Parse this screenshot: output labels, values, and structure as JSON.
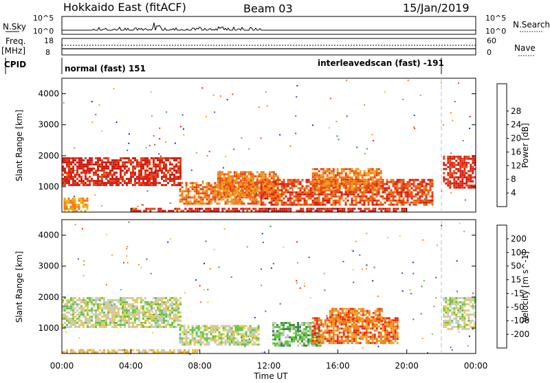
{
  "header": {
    "station": "Hokkaido East (fitACF)",
    "beam": "Beam 03",
    "date": "15/Jan/2019"
  },
  "top_labels": {
    "nsky": "N.Sky",
    "freq": "Freq.",
    "mhz": "[MHz]",
    "cpid": "CPID",
    "nsearch": "N.Search",
    "nave": "Nave",
    "nsky_ticks": [
      "10^5",
      "10^0"
    ],
    "freq_ticks": [
      "18",
      "8"
    ],
    "nsearch_ticks": [
      "10^5",
      "10^0"
    ],
    "nave_ticks": [
      "60",
      "0"
    ]
  },
  "cpid_labels": {
    "left": "normal (fast) 151",
    "right": "interleavedscan (fast) -191"
  },
  "x_axis": {
    "label": "Time UT",
    "ticks": [
      "00:00",
      "04:00",
      "08:00",
      "12:00",
      "16:00",
      "20:00",
      "00:00"
    ]
  },
  "chart_data": [
    {
      "type": "heatmap",
      "panel": "power",
      "xlabel": "Time UT",
      "ylabel": "Slant Range [km]",
      "xlim_hours": [
        0,
        24
      ],
      "ylim_km": [
        180,
        4500
      ],
      "yticks": [
        1000,
        2000,
        3000,
        4000
      ],
      "colorbar": {
        "label": "Power [dB]",
        "ticks": [
          4,
          8,
          12,
          16,
          20,
          24,
          28
        ],
        "colors": [
          "#1428e6",
          "#2a5ab4",
          "#3c8c78",
          "#6ec24a",
          "#e8c81e",
          "#f0a01e",
          "#f07814",
          "#e84614",
          "#d21e14"
        ]
      },
      "regions": [
        {
          "t": [
            0.0,
            6.9
          ],
          "r": [
            1050,
            1950
          ],
          "level": 8
        },
        {
          "t": [
            0.1,
            1.5
          ],
          "r": [
            250,
            650
          ],
          "level": 5
        },
        {
          "t": [
            6.8,
            11.4
          ],
          "r": [
            450,
            1150
          ],
          "level": 6
        },
        {
          "t": [
            9.0,
            12.5
          ],
          "r": [
            700,
            1500
          ],
          "level": 6
        },
        {
          "t": [
            11.5,
            21.5
          ],
          "r": [
            450,
            1250
          ],
          "level": 7
        },
        {
          "t": [
            14.5,
            18.5
          ],
          "r": [
            900,
            1600
          ],
          "level": 6
        },
        {
          "t": [
            4.0,
            20.0
          ],
          "r": [
            190,
            320
          ],
          "level": 8
        },
        {
          "t": [
            22.1,
            24.0
          ],
          "r": [
            1000,
            2000
          ],
          "level": 8
        }
      ]
    },
    {
      "type": "heatmap",
      "panel": "velocity",
      "xlabel": "Time UT",
      "ylabel": "Slant Range [km]",
      "xlim_hours": [
        0,
        24
      ],
      "ylim_km": [
        180,
        4500
      ],
      "yticks": [
        1000,
        2000,
        3000,
        4000
      ],
      "colorbar": {
        "label": "Velocity [m s^-1]",
        "ticks": [
          200,
          100,
          50,
          15,
          -15,
          -50,
          -100,
          -200
        ],
        "colors": [
          "#1e28b4",
          "#3c64a0",
          "#3c8c50",
          "#64c83c",
          "#c8c8c0",
          "#e8c850",
          "#f0a01e",
          "#f07814",
          "#e82814"
        ]
      },
      "regions": [
        {
          "t": [
            0.0,
            6.9
          ],
          "r": [
            1050,
            2000
          ],
          "level": 4
        },
        {
          "t": [
            6.8,
            11.4
          ],
          "r": [
            500,
            1100
          ],
          "level": 4
        },
        {
          "t": [
            12.2,
            15.0
          ],
          "r": [
            450,
            1200
          ],
          "level": 3
        },
        {
          "t": [
            14.5,
            19.5
          ],
          "r": [
            500,
            1350
          ],
          "level": 7
        },
        {
          "t": [
            15.5,
            18.5
          ],
          "r": [
            1200,
            1650
          ],
          "level": 7
        },
        {
          "t": [
            0.0,
            8.0
          ],
          "r": [
            190,
            320
          ],
          "level": 5
        },
        {
          "t": [
            22.1,
            24.0
          ],
          "r": [
            1000,
            2000
          ],
          "level": 4
        }
      ]
    }
  ]
}
